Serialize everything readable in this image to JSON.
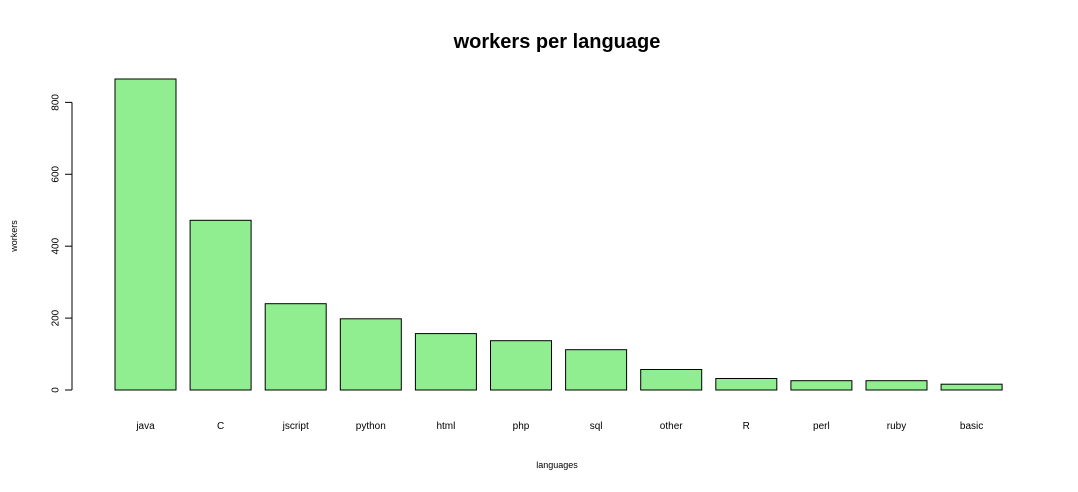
{
  "chart_data": {
    "type": "bar",
    "title": "workers per language",
    "xlabel": "languages",
    "ylabel": "workers",
    "categories": [
      "java",
      "C",
      "jscript",
      "python",
      "html",
      "php",
      "sql",
      "other",
      "R",
      "perl",
      "ruby",
      "basic"
    ],
    "values": [
      865,
      472,
      240,
      198,
      157,
      137,
      112,
      57,
      32,
      26,
      26,
      16
    ],
    "yticks": [
      0,
      200,
      400,
      600,
      800
    ],
    "ylim": [
      0,
      865
    ],
    "grid": false,
    "legend": "none",
    "bar_color": "#90EE90",
    "bar_border_color": "#000000"
  }
}
